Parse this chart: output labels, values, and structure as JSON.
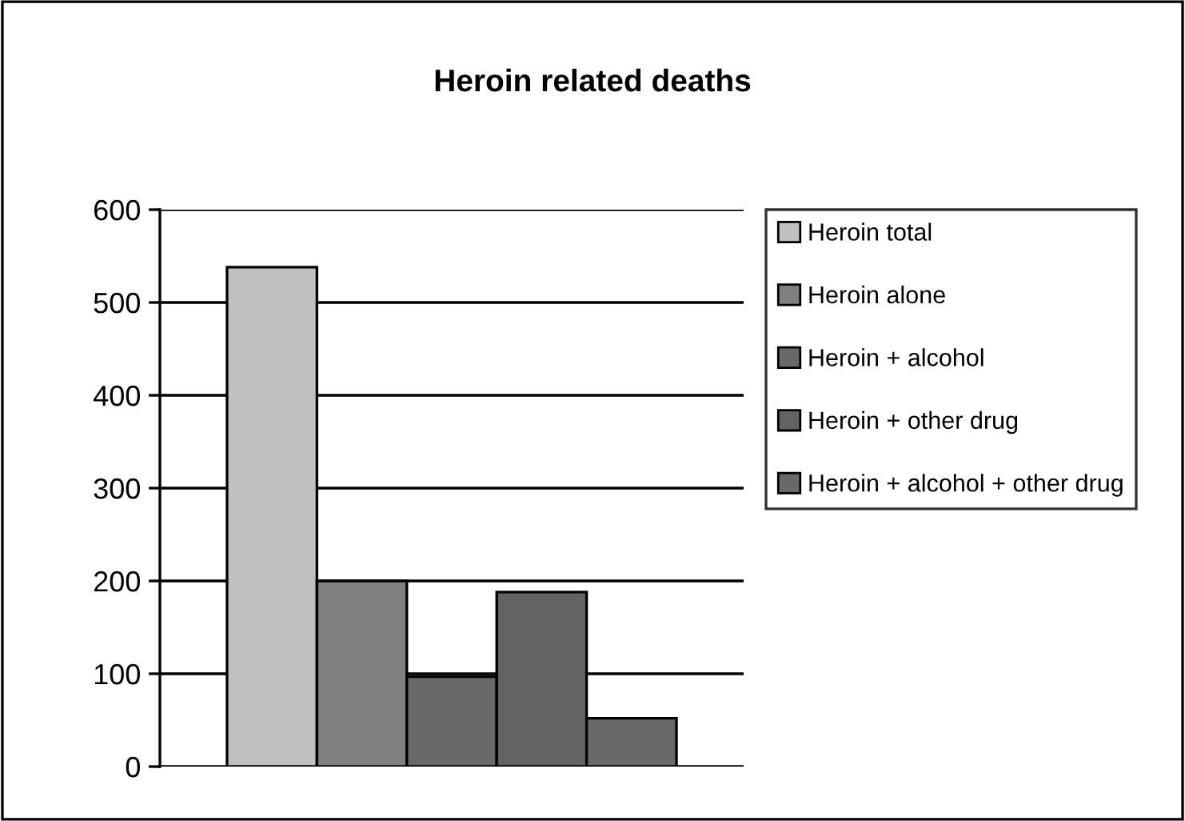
{
  "chart_data": {
    "type": "bar",
    "title": "Heroin related deaths",
    "categories": [
      null
    ],
    "series": [
      {
        "name": "Heroin total",
        "color": "#c0c0c0",
        "values": [
          538
        ]
      },
      {
        "name": "Heroin alone",
        "color": "#808080",
        "values": [
          200
        ]
      },
      {
        "name": "Heroin + alcohol",
        "color": "#696969",
        "values": [
          97
        ]
      },
      {
        "name": "Heroin + other drug",
        "color": "#636363",
        "values": [
          188
        ]
      },
      {
        "name": "Heroin + alcohol + other drug",
        "color": "#696969",
        "values": [
          52
        ]
      }
    ],
    "ylim": [
      0,
      600
    ],
    "yticks": [
      0,
      100,
      200,
      300,
      400,
      500,
      600
    ],
    "grid": "y",
    "legend": "right"
  }
}
